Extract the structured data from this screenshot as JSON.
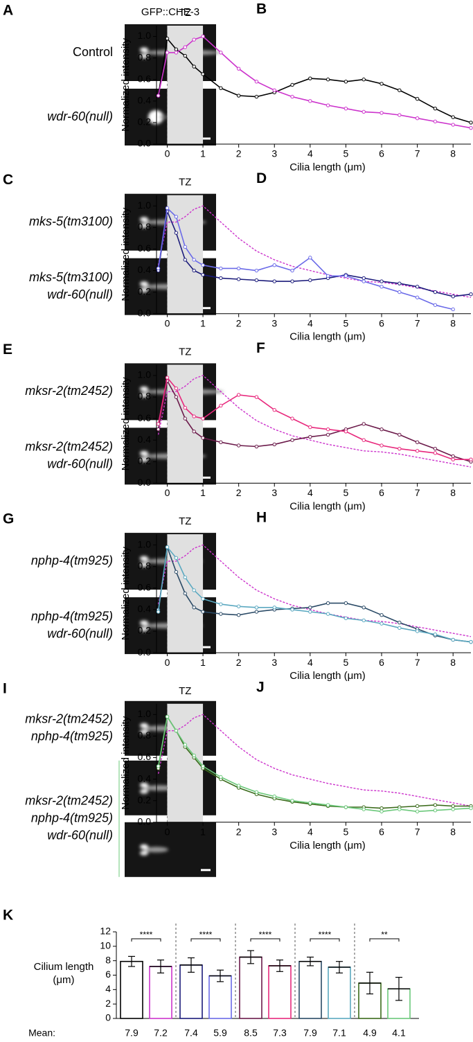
{
  "figure": {
    "header": "GFP::CHE-3",
    "image_panels": [
      {
        "panel": "A",
        "labels": [
          {
            "lines": [
              "Control"
            ],
            "color": "#000000",
            "italic": false
          },
          {
            "lines": [
              "wdr-60(null)"
            ],
            "color": "#cc33cc",
            "italic": true
          }
        ]
      },
      {
        "panel": "C",
        "labels": [
          {
            "lines": [
              "mks-5(tm3100)"
            ],
            "color": "#1a1a7a",
            "italic": true
          },
          {
            "lines": [
              "mks-5(tm3100)",
              "wdr-60(null)"
            ],
            "color": "#6a6ae8",
            "italic": true
          }
        ]
      },
      {
        "panel": "E",
        "labels": [
          {
            "lines": [
              "mksr-2(tm2452)"
            ],
            "color": "#6b1a4a",
            "italic": true
          },
          {
            "lines": [
              "mksr-2(tm2452)",
              "wdr-60(null)"
            ],
            "color": "#e8287c",
            "italic": true
          }
        ]
      },
      {
        "panel": "G",
        "labels": [
          {
            "lines": [
              "nphp-4(tm925)"
            ],
            "color": "#2a4a66",
            "italic": true
          },
          {
            "lines": [
              "nphp-4(tm925)",
              "wdr-60(null)"
            ],
            "color": "#5aa8c0",
            "italic": true
          }
        ]
      },
      {
        "panel": "I",
        "labels": [
          {
            "lines": [
              "mksr-2(tm2452)",
              "nphp-4(tm925)"
            ],
            "color": "#3a6a1a",
            "italic": true
          },
          {
            "lines": [
              "mksr-2(tm2452)",
              "nphp-4(tm925)",
              "wdr-60(null)"
            ],
            "color": "#6ac87a",
            "italic": true
          }
        ]
      }
    ]
  },
  "chart_data": [
    {
      "type": "line",
      "panel": "B",
      "xlabel": "Cilia length (μm)",
      "ylabel": "Normalized intensity",
      "annotation": "TZ",
      "shaded_region": [
        0,
        1
      ],
      "xlim": [
        -0.3,
        8.5
      ],
      "xticks": [
        0,
        1,
        2,
        3,
        4,
        5,
        6,
        7,
        8
      ],
      "ylim": [
        0,
        1.1
      ],
      "yticks": [
        {
          "value": 0,
          "label": "0.0"
        },
        0.2,
        0.4,
        0.6,
        0.8,
        {
          "value": 1,
          "label": "1.0"
        }
      ],
      "x": [
        -0.25,
        0,
        0.25,
        0.5,
        0.75,
        1,
        1.5,
        2,
        2.5,
        3,
        3.5,
        4,
        4.5,
        5,
        5.5,
        6,
        6.5,
        7,
        7.5,
        8,
        8.5
      ],
      "series": [
        {
          "color": "#000000",
          "dashed": false,
          "values": [
            0.45,
            0.98,
            0.88,
            0.82,
            0.72,
            0.65,
            0.52,
            0.45,
            0.44,
            0.48,
            0.55,
            0.61,
            0.6,
            0.58,
            0.6,
            0.56,
            0.5,
            0.42,
            0.33,
            0.25,
            0.2
          ]
        },
        {
          "color": "#cc33cc",
          "dashed": false,
          "values": [
            0.45,
            0.85,
            0.85,
            0.9,
            0.97,
            1.0,
            0.85,
            0.7,
            0.58,
            0.5,
            0.44,
            0.4,
            0.36,
            0.33,
            0.3,
            0.29,
            0.27,
            0.24,
            0.21,
            0.18,
            0.15
          ]
        }
      ]
    },
    {
      "type": "line",
      "panel": "D",
      "xlabel": "Cilia length (μm)",
      "ylabel": "Normalized intensity",
      "annotation": "TZ",
      "shaded_region": [
        0,
        1
      ],
      "xlim": [
        -0.3,
        8.5
      ],
      "xticks": [
        0,
        1,
        2,
        3,
        4,
        5,
        6,
        7,
        8
      ],
      "ylim": [
        0,
        1.1
      ],
      "yticks": [
        {
          "value": 0,
          "label": "0.0"
        },
        0.2,
        0.4,
        0.6,
        0.8,
        {
          "value": 1,
          "label": "1.0"
        }
      ],
      "x": [
        -0.25,
        0,
        0.25,
        0.5,
        0.75,
        1,
        1.5,
        2,
        2.5,
        3,
        3.5,
        4,
        4.5,
        5,
        5.5,
        6,
        6.5,
        7,
        7.5,
        8,
        8.5
      ],
      "series": [
        {
          "color": "#cc33cc",
          "dashed": true,
          "values": [
            0.45,
            0.85,
            0.85,
            0.9,
            0.97,
            1.0,
            0.85,
            0.7,
            0.58,
            0.5,
            0.44,
            0.4,
            0.36,
            0.33,
            0.3,
            0.29,
            0.27,
            0.24,
            0.21,
            0.18,
            0.15
          ]
        },
        {
          "color": "#1a1a7a",
          "dashed": false,
          "values": [
            0.4,
            0.95,
            0.75,
            0.5,
            0.4,
            0.36,
            0.33,
            0.32,
            0.31,
            0.3,
            0.3,
            0.31,
            0.33,
            0.36,
            0.33,
            0.3,
            0.28,
            0.25,
            0.2,
            0.16,
            0.18
          ]
        },
        {
          "color": "#6a6ae8",
          "dashed": false,
          "values": [
            0.42,
            0.98,
            0.9,
            0.62,
            0.5,
            0.45,
            0.42,
            0.42,
            0.4,
            0.45,
            0.4,
            0.52,
            0.35,
            0.35,
            0.3,
            0.25,
            0.2,
            0.15,
            0.08,
            0.04,
            null
          ]
        }
      ]
    },
    {
      "type": "line",
      "panel": "F",
      "xlabel": "Cilia length (μm)",
      "ylabel": "Normalized intensity",
      "annotation": "TZ",
      "shaded_region": [
        0,
        1
      ],
      "xlim": [
        -0.3,
        8.5
      ],
      "xticks": [
        0,
        1,
        2,
        3,
        4,
        5,
        6,
        7,
        8
      ],
      "ylim": [
        0,
        1.1
      ],
      "yticks": [
        {
          "value": 0,
          "label": "0.0"
        },
        0.2,
        0.4,
        0.6,
        0.8,
        {
          "value": 1,
          "label": "1.0"
        }
      ],
      "x": [
        -0.25,
        0,
        0.25,
        0.5,
        0.75,
        1,
        1.5,
        2,
        2.5,
        3,
        3.5,
        4,
        4.5,
        5,
        5.5,
        6,
        6.5,
        7,
        7.5,
        8,
        8.5
      ],
      "series": [
        {
          "color": "#cc33cc",
          "dashed": true,
          "values": [
            0.45,
            0.85,
            0.85,
            0.9,
            0.97,
            1.0,
            0.85,
            0.7,
            0.58,
            0.5,
            0.44,
            0.4,
            0.36,
            0.33,
            0.3,
            0.29,
            0.27,
            0.24,
            0.21,
            0.18,
            0.15
          ]
        },
        {
          "color": "#6b1a4a",
          "dashed": false,
          "values": [
            0.5,
            0.95,
            0.8,
            0.6,
            0.48,
            0.42,
            0.38,
            0.35,
            0.34,
            0.36,
            0.4,
            0.43,
            0.45,
            0.5,
            0.55,
            0.5,
            0.45,
            0.38,
            0.32,
            0.25,
            0.2
          ]
        },
        {
          "color": "#e8287c",
          "dashed": false,
          "values": [
            0.55,
            0.98,
            0.88,
            0.7,
            0.62,
            0.6,
            0.72,
            0.82,
            0.8,
            0.68,
            0.6,
            0.52,
            0.5,
            0.48,
            0.4,
            0.35,
            0.32,
            0.3,
            0.28,
            0.22,
            0.22
          ]
        }
      ]
    },
    {
      "type": "line",
      "panel": "H",
      "xlabel": "Cilia length (μm)",
      "ylabel": "Normalized intensity",
      "annotation": "TZ",
      "shaded_region": [
        0,
        1
      ],
      "xlim": [
        -0.3,
        8.5
      ],
      "xticks": [
        0,
        1,
        2,
        3,
        4,
        5,
        6,
        7,
        8
      ],
      "ylim": [
        0,
        1.1
      ],
      "yticks": [
        {
          "value": 0,
          "label": "0.0"
        },
        0.2,
        0.4,
        0.6,
        0.8,
        {
          "value": 1,
          "label": "1.0"
        }
      ],
      "x": [
        -0.25,
        0,
        0.25,
        0.5,
        0.75,
        1,
        1.5,
        2,
        2.5,
        3,
        3.5,
        4,
        4.5,
        5,
        5.5,
        6,
        6.5,
        7,
        7.5,
        8,
        8.5
      ],
      "series": [
        {
          "color": "#cc33cc",
          "dashed": true,
          "values": [
            0.45,
            0.85,
            0.85,
            0.9,
            0.97,
            1.0,
            0.85,
            0.7,
            0.58,
            0.5,
            0.44,
            0.4,
            0.36,
            0.33,
            0.3,
            0.29,
            0.27,
            0.24,
            0.21,
            0.18,
            0.15
          ]
        },
        {
          "color": "#2a4a66",
          "dashed": false,
          "values": [
            0.4,
            0.98,
            0.75,
            0.55,
            0.42,
            0.38,
            0.36,
            0.35,
            0.38,
            0.4,
            0.41,
            0.42,
            0.46,
            0.46,
            0.42,
            0.35,
            0.28,
            0.22,
            0.16,
            0.12,
            0.1
          ]
        },
        {
          "color": "#5aa8c0",
          "dashed": false,
          "values": [
            0.38,
            0.98,
            0.88,
            0.7,
            0.58,
            0.5,
            0.45,
            0.43,
            0.42,
            0.42,
            0.4,
            0.38,
            0.36,
            0.32,
            0.3,
            0.27,
            0.23,
            0.2,
            0.17,
            0.12,
            0.1
          ]
        }
      ]
    },
    {
      "type": "line",
      "panel": "J",
      "xlabel": "Cilia length (μm)",
      "ylabel": "Normalized intensity",
      "annotation": "TZ",
      "shaded_region": [
        0,
        1
      ],
      "xlim": [
        -0.3,
        8.5
      ],
      "xticks": [
        0,
        1,
        2,
        3,
        4,
        5,
        6,
        7,
        8
      ],
      "ylim": [
        0,
        1.1
      ],
      "yticks": [
        {
          "value": 0,
          "label": "0.0"
        },
        0.2,
        0.4,
        0.6,
        0.8,
        {
          "value": 1,
          "label": "1.0"
        }
      ],
      "x": [
        -0.25,
        0,
        0.25,
        0.5,
        0.75,
        1,
        1.5,
        2,
        2.5,
        3,
        3.5,
        4,
        4.5,
        5,
        5.5,
        6,
        6.5,
        7,
        7.5,
        8,
        8.5
      ],
      "series": [
        {
          "color": "#cc33cc",
          "dashed": true,
          "values": [
            0.45,
            0.85,
            0.85,
            0.9,
            0.97,
            1.0,
            0.85,
            0.7,
            0.58,
            0.5,
            0.44,
            0.4,
            0.36,
            0.33,
            0.3,
            0.29,
            0.27,
            0.24,
            0.21,
            0.18,
            0.15
          ]
        },
        {
          "color": "#3a6a1a",
          "dashed": false,
          "values": [
            0.5,
            0.98,
            0.85,
            0.7,
            0.6,
            0.5,
            0.4,
            0.32,
            0.26,
            0.22,
            0.19,
            0.17,
            0.15,
            0.14,
            0.14,
            0.13,
            0.14,
            0.15,
            0.16,
            0.15,
            0.15
          ]
        },
        {
          "color": "#6ac87a",
          "dashed": false,
          "values": [
            0.52,
            0.98,
            0.85,
            0.72,
            0.62,
            0.52,
            0.42,
            0.34,
            0.28,
            0.24,
            0.2,
            0.18,
            0.16,
            0.14,
            0.12,
            0.1,
            0.12,
            0.1,
            0.11,
            0.12,
            0.13
          ]
        }
      ]
    },
    {
      "type": "bar",
      "panel": "K",
      "ylabel": [
        "Cilium length",
        "(μm)"
      ],
      "mean_label": "Mean:",
      "ylim": [
        0,
        12
      ],
      "yticks": [
        0,
        2,
        4,
        6,
        8,
        10,
        12
      ],
      "values": [
        7.9,
        7.2,
        7.4,
        5.9,
        8.5,
        7.3,
        7.9,
        7.1,
        4.9,
        4.1
      ],
      "errors": [
        0.7,
        0.9,
        1.0,
        0.8,
        0.9,
        0.8,
        0.6,
        0.8,
        1.5,
        1.6
      ],
      "colors": [
        "#000000",
        "#cc33cc",
        "#1a1a7a",
        "#6a6ae8",
        "#6b1a4a",
        "#e8287c",
        "#2a4a66",
        "#5aa8c0",
        "#3a6a1a",
        "#6ac87a"
      ],
      "significance": [
        {
          "pair": [
            0,
            1
          ],
          "label": "****"
        },
        {
          "pair": [
            2,
            3
          ],
          "label": "****"
        },
        {
          "pair": [
            4,
            5
          ],
          "label": "****"
        },
        {
          "pair": [
            6,
            7
          ],
          "label": "****"
        },
        {
          "pair": [
            8,
            9
          ],
          "label": "**"
        }
      ]
    }
  ]
}
